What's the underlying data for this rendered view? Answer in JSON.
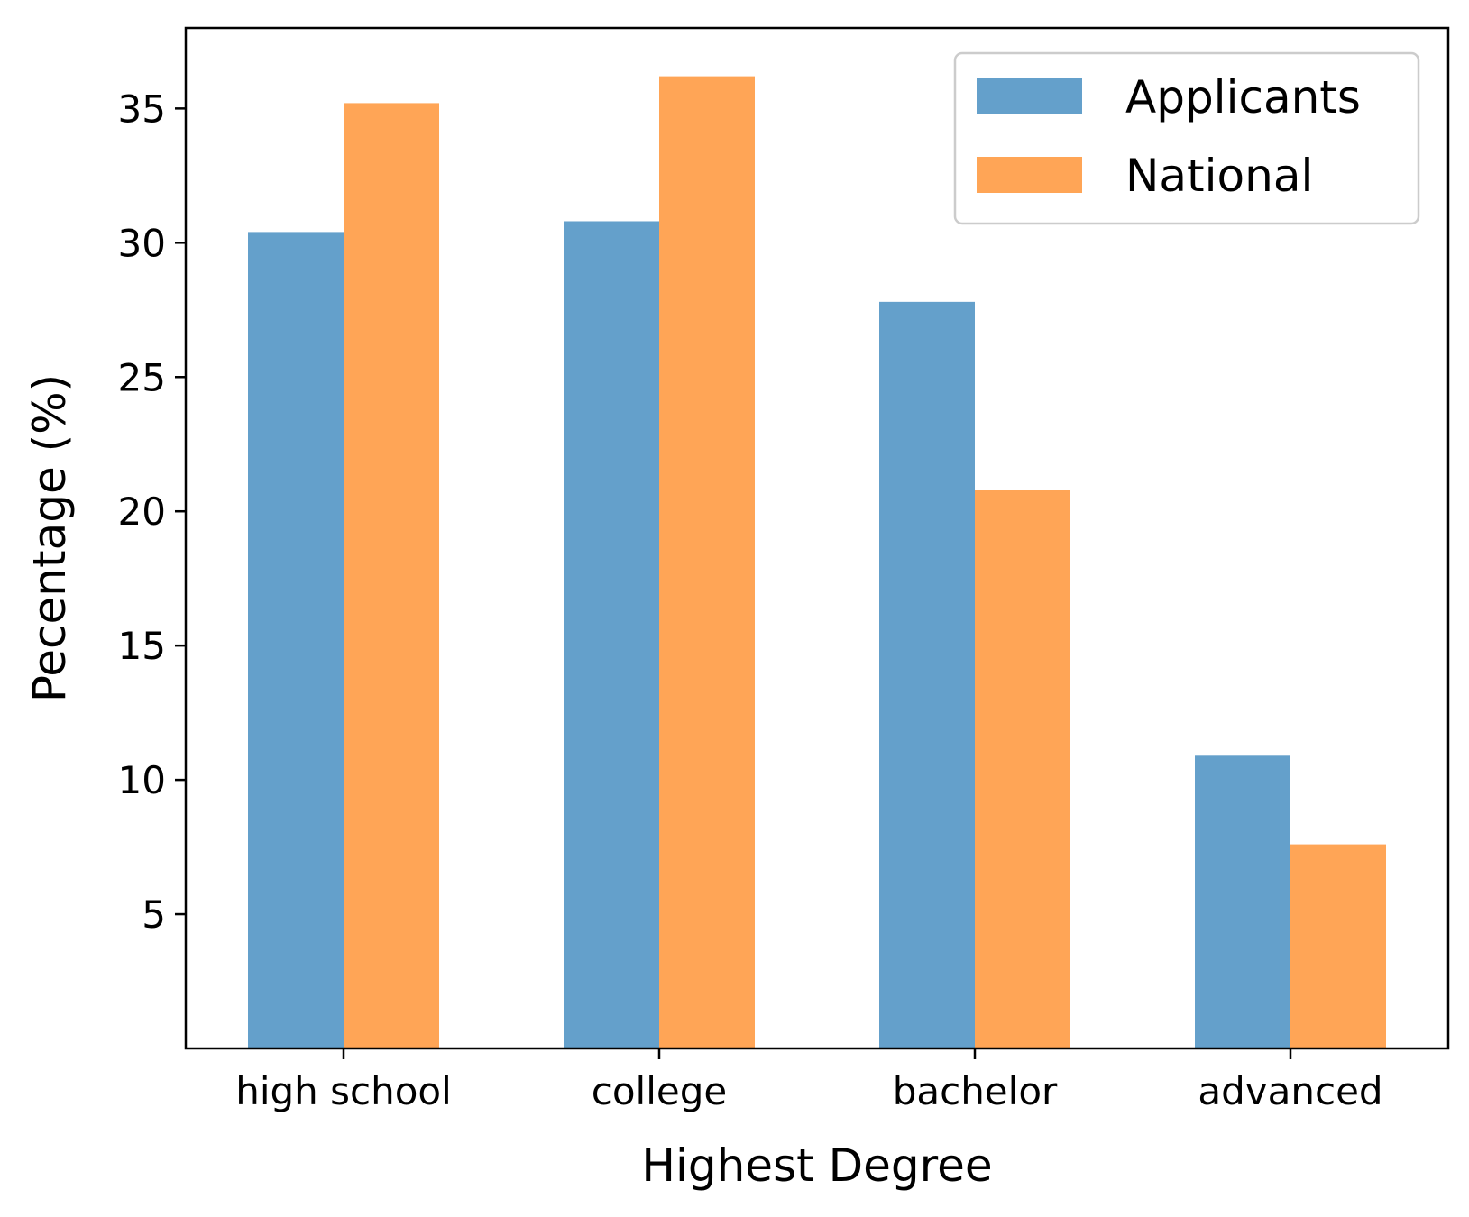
{
  "chart_data": {
    "type": "bar",
    "categories": [
      "high school",
      "college",
      "bachelor",
      "advanced"
    ],
    "series": [
      {
        "name": "Applicants",
        "values": [
          30.4,
          30.8,
          27.8,
          10.9
        ],
        "color": "#64a0cb"
      },
      {
        "name": "National",
        "values": [
          35.2,
          36.2,
          20.8,
          7.6
        ],
        "color": "#ffa556"
      }
    ],
    "xlabel": "Highest Degree",
    "ylabel": "Pecentage (%)",
    "ylim": [
      0,
      38
    ],
    "yticks": [
      5,
      10,
      15,
      20,
      25,
      30,
      35
    ],
    "grid": false,
    "legend_position": "top-right"
  }
}
